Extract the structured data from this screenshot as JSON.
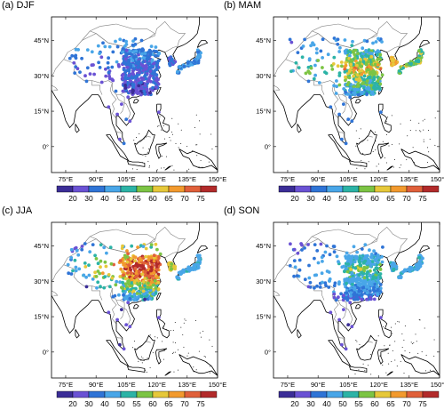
{
  "figure": {
    "panels": [
      {
        "id": "a",
        "title": "(a) DJF"
      },
      {
        "id": "b",
        "title": "(b) MAM"
      },
      {
        "id": "c",
        "title": "(c) JJA"
      },
      {
        "id": "d",
        "title": "(d) SON"
      }
    ],
    "lon_ticks": [
      "75°E",
      "90°E",
      "105°E",
      "120°E",
      "135°E",
      "150°E"
    ],
    "lat_ticks": [
      "45°N",
      "30°N",
      "15°N",
      "0°"
    ],
    "colorbar": {
      "labels": [
        "20",
        "30",
        "40",
        "50",
        "55",
        "60",
        "65",
        "70",
        "75"
      ],
      "colors": [
        "#3b2d97",
        "#6a52d4",
        "#2f74d6",
        "#49a6e8",
        "#2cb3a6",
        "#7cc444",
        "#e6c83a",
        "#f29a2e",
        "#e0603a",
        "#b22a2a"
      ]
    }
  },
  "colors": {
    "coast": "#000000",
    "border": "#808080"
  }
}
